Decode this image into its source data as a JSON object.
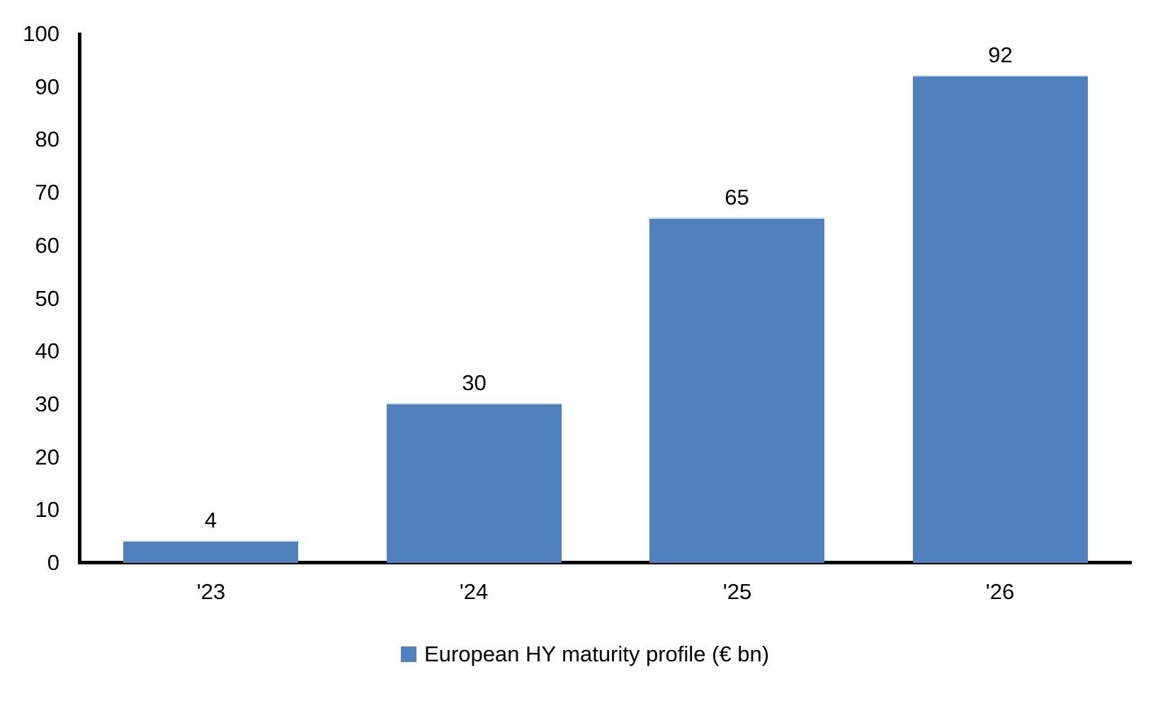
{
  "chart_data": {
    "type": "bar",
    "categories": [
      "'23",
      "'24",
      "'25",
      "'26"
    ],
    "values": [
      4,
      30,
      65,
      92
    ],
    "data_labels": [
      "4",
      "30",
      "65",
      "92"
    ],
    "series_name": "European HY maturity profile (€ bn)",
    "title": "",
    "xlabel": "",
    "ylabel": "",
    "ylim": [
      0,
      100
    ],
    "yticks": [
      0,
      10,
      20,
      30,
      40,
      50,
      60,
      70,
      80,
      90,
      100
    ],
    "grid": false,
    "legend_position": "bottom",
    "colors": {
      "bar_fill": "#4F81BD",
      "bar_top_highlight": "#D7E1EE",
      "axis_line": "#000000",
      "text": "#000000",
      "background": "#FFFFFF"
    }
  }
}
